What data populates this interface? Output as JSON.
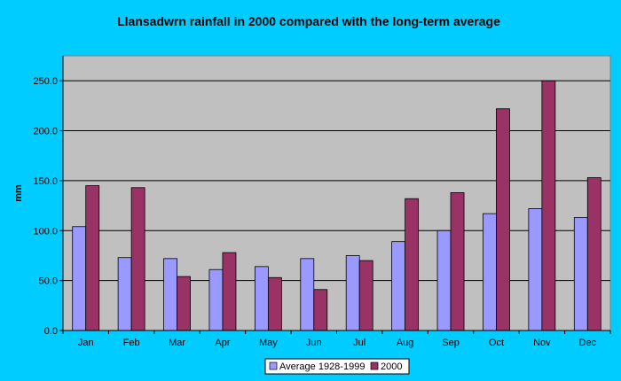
{
  "chart_data": {
    "type": "bar",
    "title": "Llansadwrn rainfall in 2000 compared with the long-term average",
    "xlabel": "",
    "ylabel": "mm",
    "ylim": [
      0,
      275
    ],
    "yticks": [
      0,
      50,
      100,
      150,
      200,
      250
    ],
    "ytick_labels": [
      "0.0",
      "50.0",
      "100.0",
      "150.0",
      "200.0",
      "250.0"
    ],
    "categories": [
      "Jan",
      "Feb",
      "Mar",
      "Apr",
      "May",
      "Jun",
      "Jul",
      "Aug",
      "Sep",
      "Oct",
      "Nov",
      "Dec"
    ],
    "series": [
      {
        "name": "Average 1928-1999",
        "color": "#9999FF",
        "values": [
          104,
          73,
          72,
          61,
          64,
          72,
          75,
          89,
          100,
          117,
          122,
          113
        ]
      },
      {
        "name": "2000",
        "color": "#993366",
        "values": [
          145,
          143,
          54,
          78,
          53,
          41,
          70,
          132,
          138,
          222,
          250,
          153
        ]
      }
    ],
    "grid": true,
    "legend_position": "bottom",
    "plot_background": "#C0C0C0",
    "page_background": "#00CCFF"
  }
}
